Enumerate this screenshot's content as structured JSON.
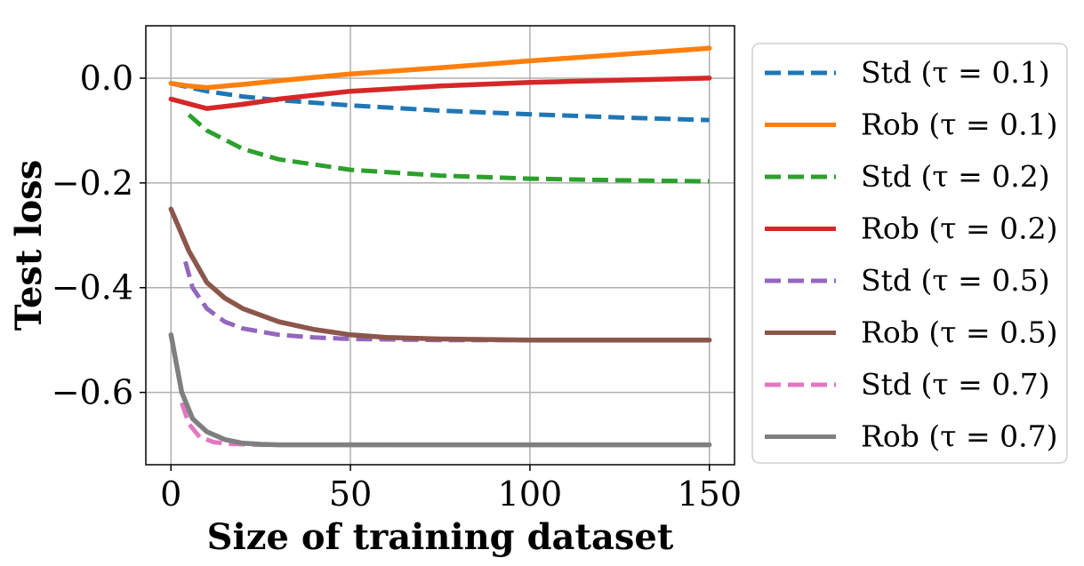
{
  "chart_data": {
    "type": "line",
    "xlabel": "Size of training dataset",
    "ylabel": "Test loss",
    "xlim": [
      -7,
      157
    ],
    "ylim": [
      -0.738,
      0.1
    ],
    "xticks": [
      {
        "value": 0,
        "label": "0"
      },
      {
        "value": 50,
        "label": "50"
      },
      {
        "value": 100,
        "label": "100"
      },
      {
        "value": 150,
        "label": "150"
      }
    ],
    "yticks": [
      {
        "value": 0.0,
        "label": "0.0"
      },
      {
        "value": -0.2,
        "label": "−0.2"
      },
      {
        "value": -0.4,
        "label": "−0.4"
      },
      {
        "value": -0.6,
        "label": "−0.6"
      }
    ],
    "grid": true,
    "legend_placement": "outside-right",
    "series": [
      {
        "name": "Std (τ = 0.1)",
        "color": "#1f77b4",
        "style": "dashed",
        "x": [
          0,
          10,
          20,
          30,
          50,
          75,
          100,
          125,
          150
        ],
        "y": [
          -0.01,
          -0.025,
          -0.035,
          -0.042,
          -0.052,
          -0.062,
          -0.069,
          -0.075,
          -0.08
        ]
      },
      {
        "name": "Rob (τ = 0.1)",
        "color": "#ff7f0e",
        "style": "solid",
        "x": [
          0,
          5,
          10,
          20,
          30,
          50,
          75,
          100,
          125,
          150
        ],
        "y": [
          -0.01,
          -0.015,
          -0.018,
          -0.012,
          -0.005,
          0.008,
          0.02,
          0.033,
          0.045,
          0.057
        ]
      },
      {
        "name": "Std (τ = 0.2)",
        "color": "#2ca02c",
        "style": "dashed",
        "x": [
          5,
          10,
          20,
          30,
          50,
          75,
          100,
          125,
          150
        ],
        "y": [
          -0.07,
          -0.1,
          -0.135,
          -0.155,
          -0.175,
          -0.186,
          -0.192,
          -0.195,
          -0.197
        ]
      },
      {
        "name": "Rob (τ = 0.2)",
        "color": "#d62728",
        "style": "solid",
        "x": [
          0,
          10,
          20,
          30,
          50,
          75,
          100,
          125,
          150
        ],
        "y": [
          -0.04,
          -0.058,
          -0.05,
          -0.04,
          -0.025,
          -0.015,
          -0.008,
          -0.004,
          0.0
        ]
      },
      {
        "name": "Std (τ = 0.5)",
        "color": "#9467bd",
        "style": "dashed",
        "x": [
          4,
          6,
          10,
          15,
          20,
          30,
          40,
          50,
          75,
          100,
          125,
          150
        ],
        "y": [
          -0.35,
          -0.4,
          -0.44,
          -0.465,
          -0.478,
          -0.49,
          -0.495,
          -0.498,
          -0.5,
          -0.5,
          -0.5,
          -0.5
        ]
      },
      {
        "name": "Rob (τ = 0.5)",
        "color": "#8c564b",
        "style": "solid",
        "x": [
          0,
          5,
          10,
          15,
          20,
          30,
          40,
          50,
          60,
          75,
          100,
          125,
          150
        ],
        "y": [
          -0.25,
          -0.33,
          -0.39,
          -0.42,
          -0.44,
          -0.465,
          -0.48,
          -0.49,
          -0.495,
          -0.498,
          -0.5,
          -0.5,
          -0.5
        ]
      },
      {
        "name": "Std (τ = 0.7)",
        "color": "#e377c2",
        "style": "dashed",
        "x": [
          3,
          5,
          8,
          12,
          16,
          20,
          25,
          30,
          50,
          75,
          100,
          125,
          150
        ],
        "y": [
          -0.62,
          -0.66,
          -0.685,
          -0.695,
          -0.698,
          -0.699,
          -0.7,
          -0.7,
          -0.7,
          -0.7,
          -0.7,
          -0.7,
          -0.7
        ]
      },
      {
        "name": "Rob (τ = 0.7)",
        "color": "#7f7f7f",
        "style": "solid",
        "x": [
          0,
          3,
          6,
          10,
          15,
          20,
          25,
          30,
          50,
          75,
          100,
          125,
          150
        ],
        "y": [
          -0.49,
          -0.6,
          -0.65,
          -0.675,
          -0.69,
          -0.697,
          -0.699,
          -0.7,
          -0.7,
          -0.7,
          -0.7,
          -0.7,
          -0.7
        ]
      }
    ]
  }
}
